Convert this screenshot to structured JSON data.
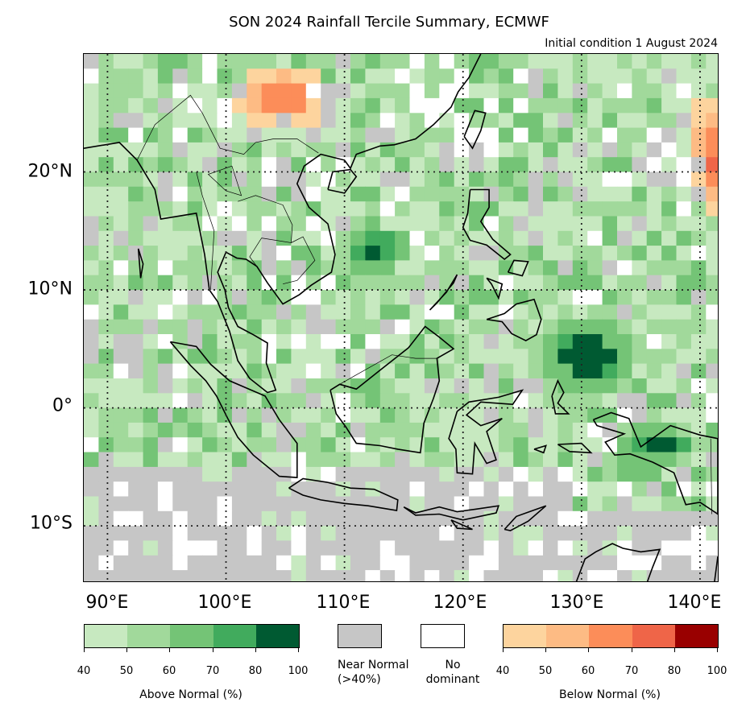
{
  "title": "SON 2024 Rainfall Tercile Summary, ECMWF",
  "subtitle": "Initial condition 1 August 2024",
  "map": {
    "lon_range": [
      88,
      141.5
    ],
    "lat_range": [
      -14.7,
      30
    ],
    "gridlines": "dotted",
    "lat_labels": [
      {
        "lat": 20,
        "text": "20°N"
      },
      {
        "lat": 10,
        "text": "10°N"
      },
      {
        "lat": 0,
        "text": "0°"
      },
      {
        "lat": -10,
        "text": "10°S"
      }
    ],
    "lon_labels": [
      {
        "lon": 90,
        "text": "90°E"
      },
      {
        "lon": 100,
        "text": "100°E"
      },
      {
        "lon": 110,
        "text": "110°E"
      },
      {
        "lon": 120,
        "text": "120°E"
      },
      {
        "lon": 130,
        "text": "130°E"
      },
      {
        "lon": 140,
        "text": "140°E"
      }
    ]
  },
  "legend": {
    "above": {
      "label": "Above Normal (%)",
      "colors": [
        "#c7e9c0",
        "#a1d99b",
        "#74c476",
        "#41ab5d",
        "#005a32"
      ],
      "ticks": [
        "40",
        "50",
        "60",
        "70",
        "80",
        "100"
      ]
    },
    "near_normal": {
      "label_line1": "Near Normal",
      "label_line2": "(>40%)",
      "color": "#c6c6c6"
    },
    "no_dominant": {
      "label_line1": "No",
      "label_line2": "dominant",
      "color": "#ffffff"
    },
    "below": {
      "label": "Below Normal (%)",
      "colors": [
        "#fdd49e",
        "#fdbb84",
        "#fc8d59",
        "#ef6548",
        "#990000"
      ],
      "ticks": [
        "40",
        "50",
        "60",
        "70",
        "80",
        "100"
      ]
    }
  }
}
